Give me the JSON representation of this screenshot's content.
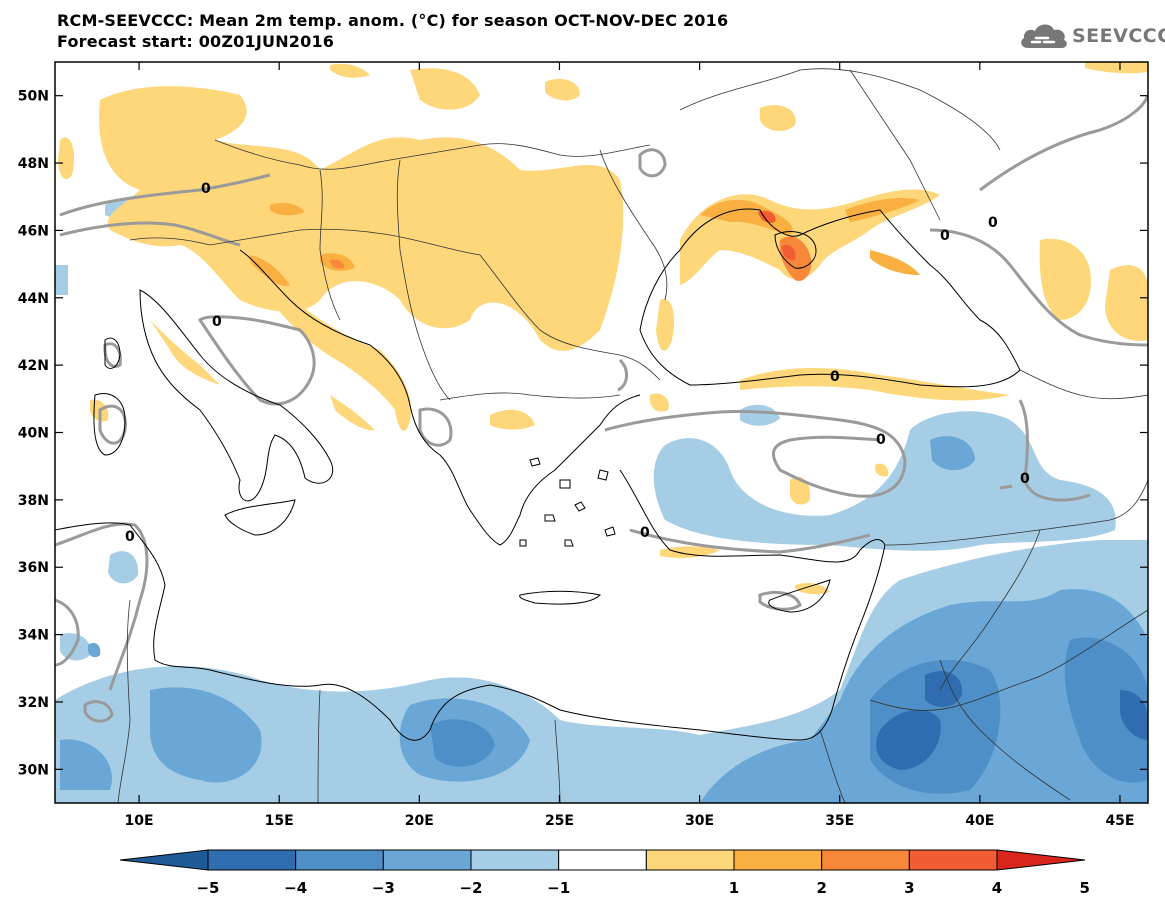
{
  "title": {
    "line1": "RCM-SEEVCCC: Mean 2m temp. anom. (°C) for season OCT-NOV-DEC 2016",
    "line2": "Forecast start: 00Z01JUN2016"
  },
  "logo": {
    "text": "SEEVCCC",
    "icon": "cloud-icon"
  },
  "map": {
    "lon_range": [
      7,
      46
    ],
    "lat_range": [
      29,
      51
    ],
    "x_ticks": [
      {
        "lon": 10,
        "label": "10E"
      },
      {
        "lon": 15,
        "label": "15E"
      },
      {
        "lon": 20,
        "label": "20E"
      },
      {
        "lon": 25,
        "label": "25E"
      },
      {
        "lon": 30,
        "label": "30E"
      },
      {
        "lon": 35,
        "label": "35E"
      },
      {
        "lon": 40,
        "label": "40E"
      },
      {
        "lon": 45,
        "label": "45E"
      }
    ],
    "y_ticks": [
      {
        "lat": 50,
        "label": "50N"
      },
      {
        "lat": 48,
        "label": "48N"
      },
      {
        "lat": 46,
        "label": "46N"
      },
      {
        "lat": 44,
        "label": "44N"
      },
      {
        "lat": 42,
        "label": "42N"
      },
      {
        "lat": 40,
        "label": "40N"
      },
      {
        "lat": 38,
        "label": "38N"
      },
      {
        "lat": 36,
        "label": "36N"
      },
      {
        "lat": 34,
        "label": "34N"
      },
      {
        "lat": 32,
        "label": "32N"
      },
      {
        "lat": 30,
        "label": "30N"
      }
    ],
    "zero_contour_label": "0"
  },
  "colorbar": {
    "labels": [
      "−5",
      "−4",
      "−3",
      "−2",
      "−1",
      "1",
      "2",
      "3",
      "4",
      "5"
    ],
    "colors": [
      "#1f5b99",
      "#2f6db0",
      "#4d8fc6",
      "#6ba7d6",
      "#a6cde6",
      "#ffffff",
      "#fdd77a",
      "#f9b040",
      "#f7883a",
      "#f25c33",
      "#d9261c"
    ]
  }
}
